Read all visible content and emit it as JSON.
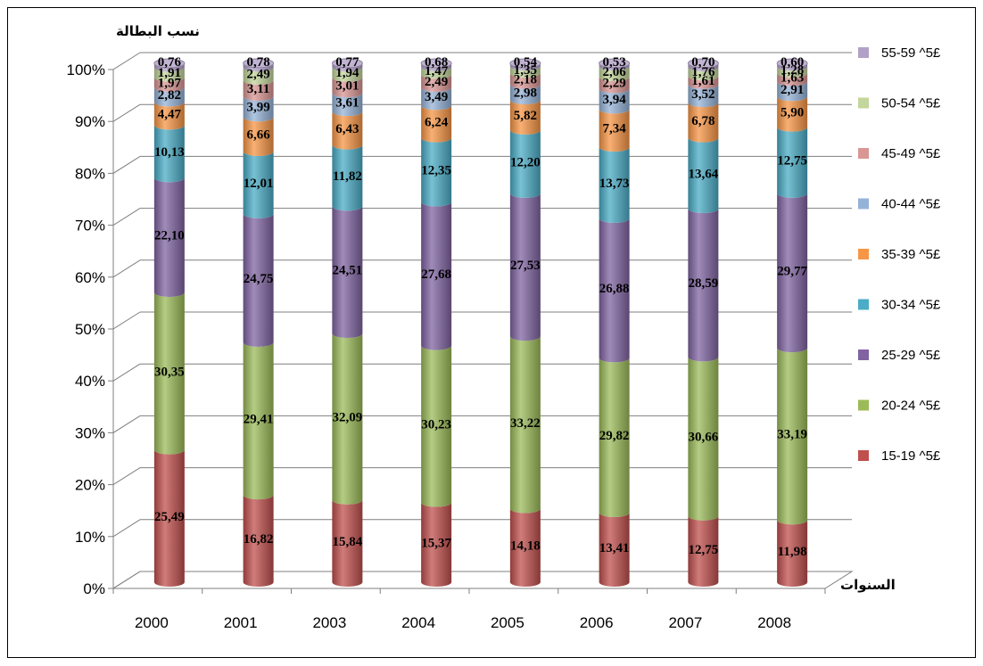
{
  "chart_data": {
    "type": "bar",
    "stacked": true,
    "percent_stacked": true,
    "ylabel": "نسب البطالة",
    "xlabel": "السنوات",
    "y_ticks": [
      "0%",
      "10%",
      "20%",
      "30%",
      "40%",
      "50%",
      "60%",
      "70%",
      "80%",
      "90%",
      "100%"
    ],
    "ylim": [
      0,
      100
    ],
    "grid": true,
    "legend_position": "right",
    "categories": [
      "2000",
      "2001",
      "2003",
      "2004",
      "2005",
      "2006",
      "2007",
      "2008"
    ],
    "series": [
      {
        "name": "15-19 ^5£",
        "color": "#c0504d",
        "values": [
          25.49,
          16.82,
          15.84,
          15.37,
          14.18,
          13.41,
          12.75,
          11.98
        ],
        "labels": [
          "25,49",
          "16,82",
          "15,84",
          "15,37",
          "14,18",
          "13,41",
          "12,75",
          "11,98"
        ]
      },
      {
        "name": "20-24 ^5£",
        "color": "#9bbb59",
        "values": [
          30.35,
          29.41,
          32.09,
          30.23,
          33.22,
          29.82,
          30.66,
          33.19
        ],
        "labels": [
          "30,35",
          "29,41",
          "32,09",
          "30,23",
          "33,22",
          "29,82",
          "30,66",
          "33,19"
        ]
      },
      {
        "name": "25-29 ^5£",
        "color": "#8064a2",
        "values": [
          22.1,
          24.75,
          24.51,
          27.68,
          27.53,
          26.88,
          28.59,
          29.77
        ],
        "labels": [
          "22,10",
          "24,75",
          "24,51",
          "27,68",
          "27,53",
          "26,88",
          "28,59",
          "29,77"
        ]
      },
      {
        "name": "30-34 ^5£",
        "color": "#4bacc6",
        "values": [
          10.13,
          12.01,
          11.82,
          12.35,
          12.2,
          13.73,
          13.64,
          12.75
        ],
        "labels": [
          "10,13",
          "12,01",
          "11,82",
          "12,35",
          "12,20",
          "13,73",
          "13,64",
          "12,75"
        ]
      },
      {
        "name": "35-39 ^5£",
        "color": "#f79646",
        "values": [
          4.47,
          6.66,
          6.43,
          6.24,
          5.82,
          7.34,
          6.78,
          5.9
        ],
        "labels": [
          "4,47",
          "6,66",
          "6,43",
          "6,24",
          "5,82",
          "7,34",
          "6,78",
          "5,90"
        ]
      },
      {
        "name": "40-44 ^5£",
        "color": "#95b3d7",
        "values": [
          2.82,
          3.99,
          3.61,
          3.49,
          2.98,
          3.94,
          3.52,
          2.91
        ],
        "labels": [
          "2,82",
          "3,99",
          "3,61",
          "3,49",
          "2,98",
          "3,94",
          "3,52",
          "2,91"
        ]
      },
      {
        "name": "45-49 ^5£",
        "color": "#d99694",
        "values": [
          1.97,
          3.11,
          3.01,
          2.49,
          2.18,
          2.29,
          1.61,
          1.63
        ],
        "labels": [
          "1,97",
          "3,11",
          "3,01",
          "2,49",
          "2,18",
          "2,29",
          "1,61",
          "1,63"
        ]
      },
      {
        "name": "50-54 ^5£",
        "color": "#c3d69b",
        "values": [
          1.91,
          2.49,
          1.94,
          1.47,
          1.35,
          2.06,
          1.76,
          1.28
        ],
        "labels": [
          "1,91",
          "2,49",
          "1,94",
          "1,47",
          "1,35",
          "2,06",
          "1,76",
          "1,28"
        ]
      },
      {
        "name": "55-59 ^5£",
        "color": "#b2a1c7",
        "values": [
          0.76,
          0.78,
          0.77,
          0.68,
          0.54,
          0.53,
          0.7,
          0.6
        ],
        "labels": [
          "0,76",
          "0,78",
          "0,77",
          "0,68",
          "0,54",
          "0,53",
          "0,70",
          "0,60"
        ]
      }
    ]
  }
}
